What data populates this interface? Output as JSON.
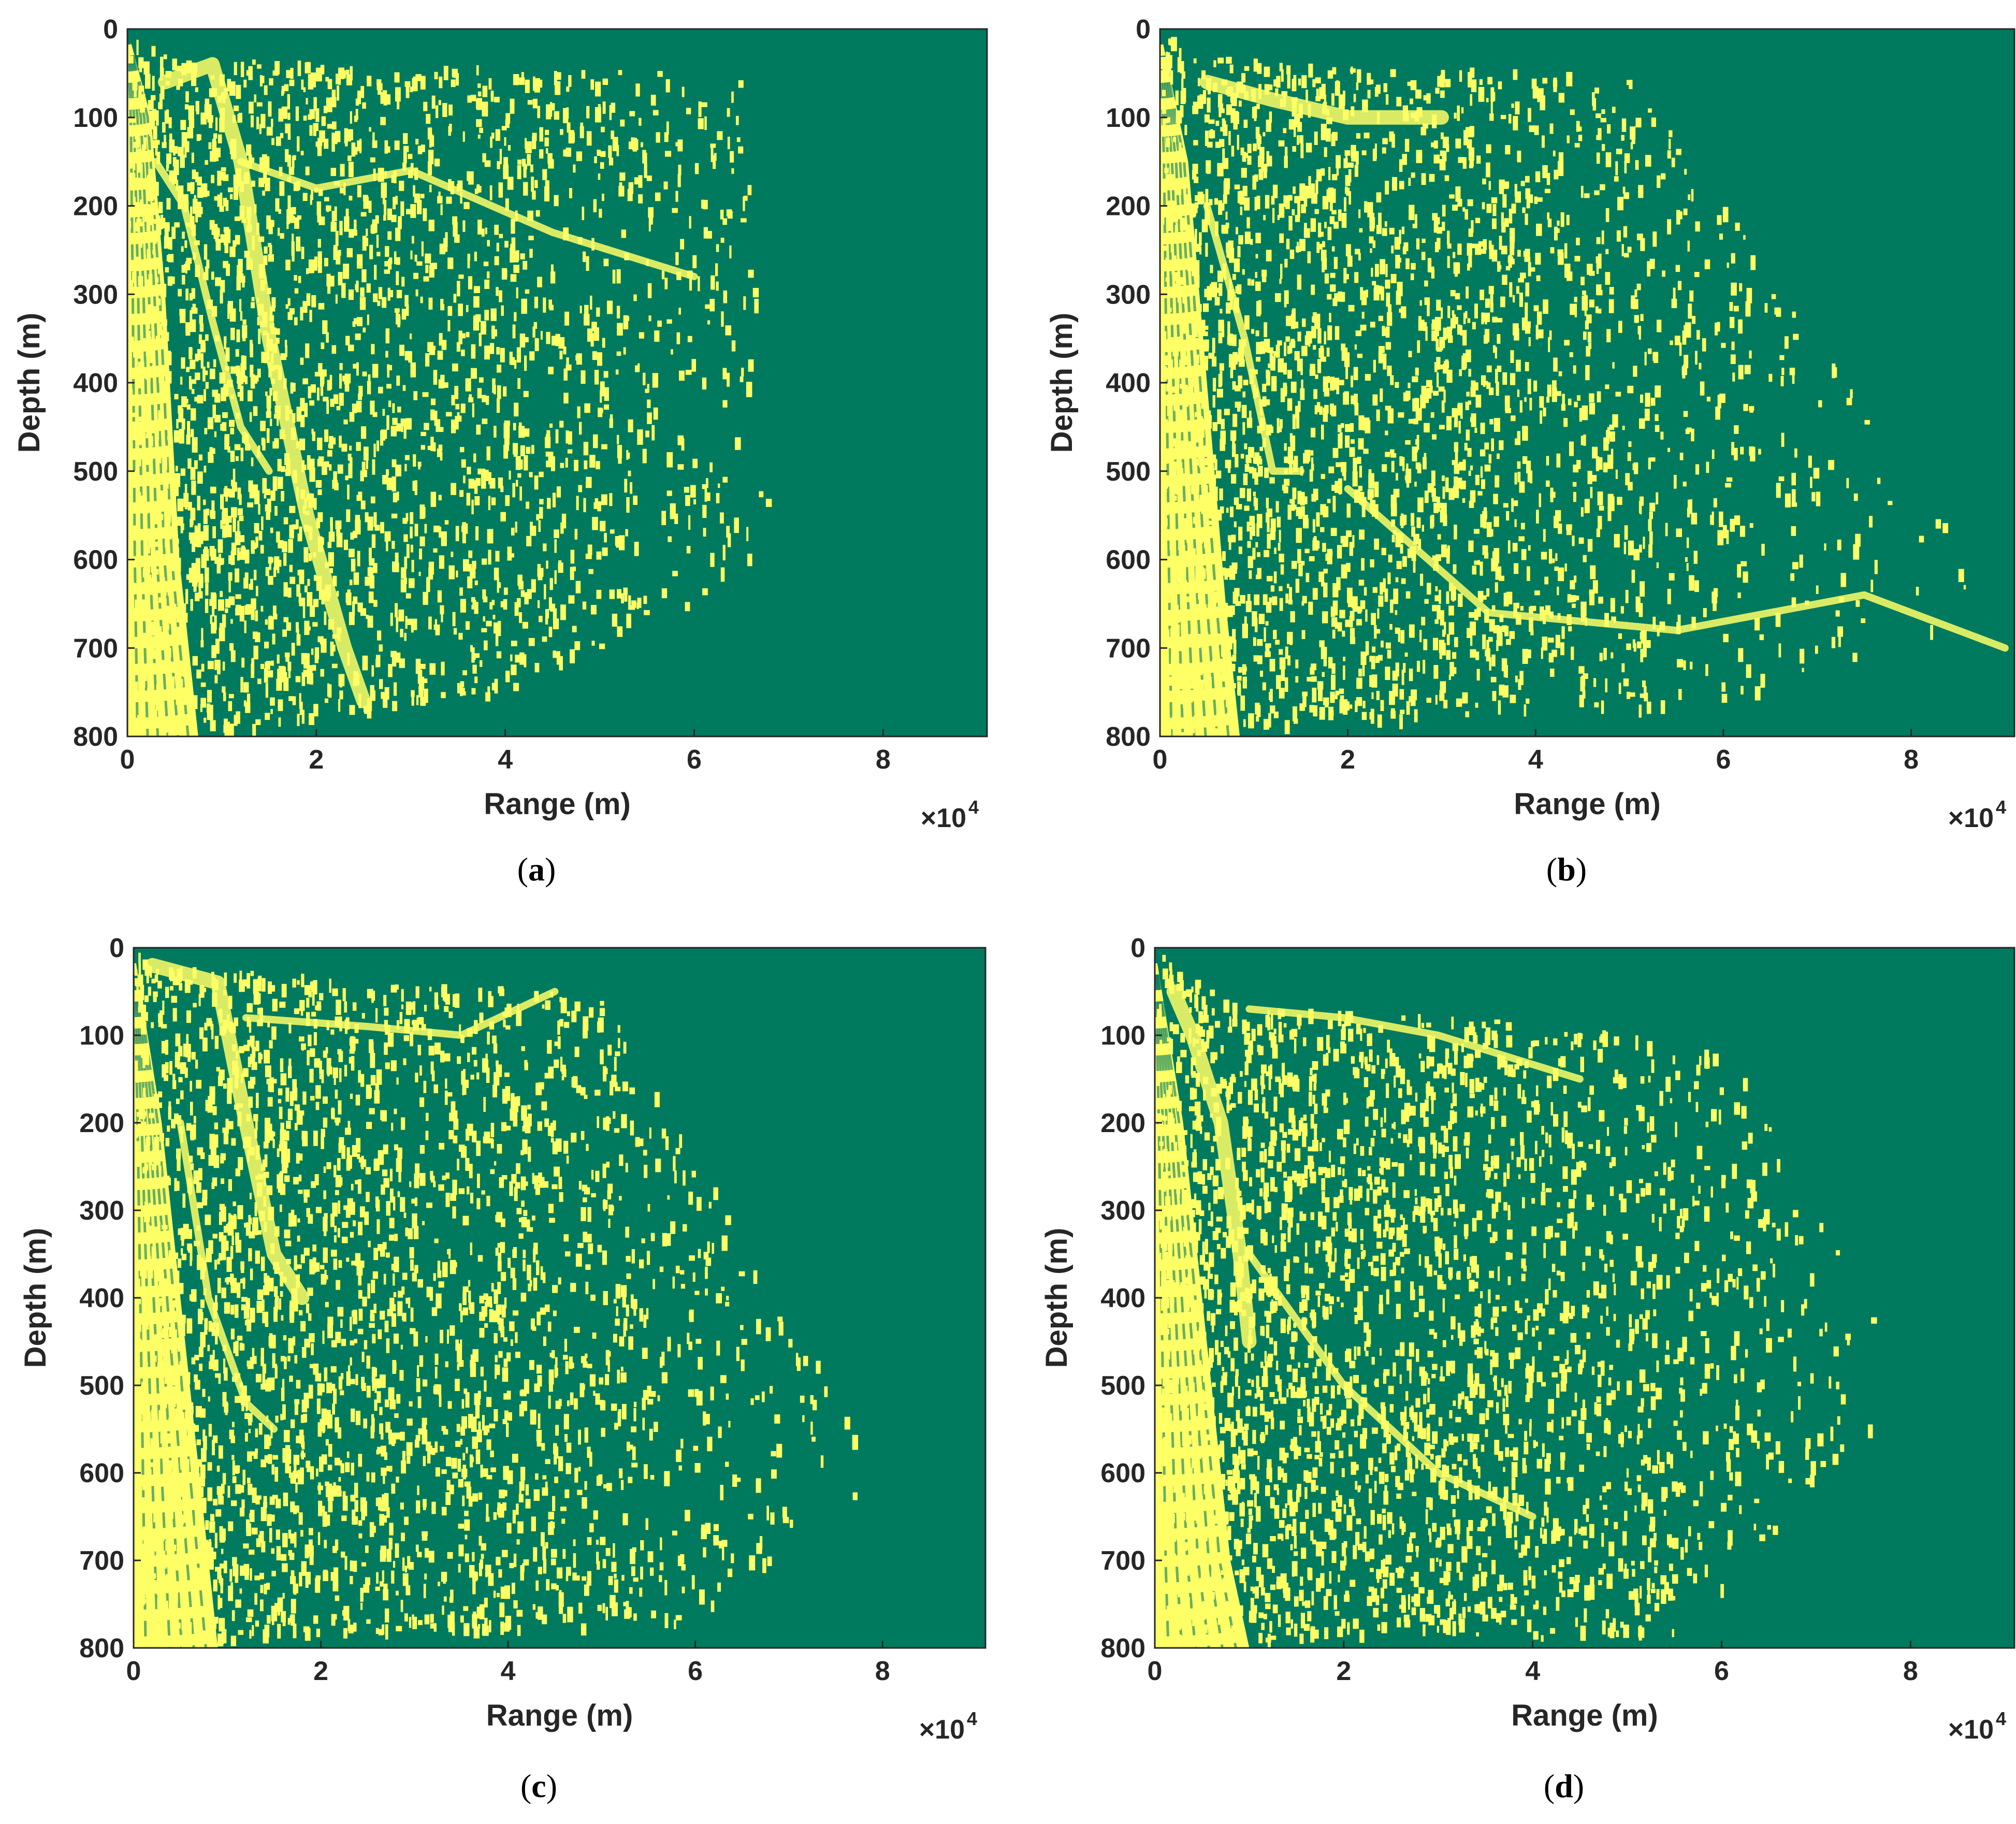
{
  "colors": {
    "background": "#007A5E",
    "feature": "#FFFF66",
    "axis": "#262626"
  },
  "chart_data": [
    {
      "type": "heatmap",
      "panel": "a",
      "caption_letter": "a",
      "xlabel": "Range (m)",
      "ylabel": "Depth (m)",
      "x_multiplier": "×10",
      "x_multiplier_exp": "4",
      "xlim": [
        0,
        91000
      ],
      "ylim": [
        800,
        0
      ],
      "xticks": [
        0,
        20000,
        40000,
        60000,
        80000
      ],
      "xtick_labels": [
        "0",
        "2",
        "4",
        "6",
        "8"
      ],
      "yticks": [
        0,
        100,
        200,
        300,
        400,
        500,
        600,
        700,
        800
      ],
      "ytick_labels": [
        "0",
        "100",
        "200",
        "300",
        "400",
        "500",
        "600",
        "700",
        "800"
      ],
      "colormap": [
        "#007A5E",
        "#FFFF66"
      ],
      "features": {
        "source_band": [
          [
            0,
            0
          ],
          [
            2500,
            100
          ],
          [
            4000,
            300
          ],
          [
            5500,
            600
          ],
          [
            7500,
            800
          ]
        ],
        "ridges": [
          {
            "points": [
              [
                4000,
                60
              ],
              [
                9000,
                40
              ],
              [
                12000,
                150
              ],
              [
                15000,
                350
              ],
              [
                19000,
                550
              ],
              [
                23000,
                700
              ],
              [
                25000,
                760
              ]
            ]
          },
          {
            "points": [
              [
                3000,
                150
              ],
              [
                6000,
                200
              ],
              [
                9000,
                330
              ],
              [
                12000,
                450
              ],
              [
                15000,
                500
              ]
            ]
          },
          {
            "points": [
              [
                12000,
                150
              ],
              [
                20000,
                180
              ],
              [
                30000,
                160
              ],
              [
                45000,
                230
              ],
              [
                60000,
                280
              ]
            ]
          }
        ],
        "scatter_extent": [
          [
            4000,
            30
          ],
          [
            65000,
            50
          ],
          [
            68000,
            600
          ],
          [
            40000,
            750
          ],
          [
            20000,
            780
          ]
        ]
      }
    },
    {
      "type": "heatmap",
      "panel": "b",
      "caption_letter": "b",
      "xlabel": "Range (m)",
      "ylabel": "Depth (m)",
      "x_multiplier": "×10",
      "x_multiplier_exp": "4",
      "xlim": [
        0,
        91000
      ],
      "ylim": [
        800,
        0
      ],
      "xticks": [
        0,
        20000,
        40000,
        60000,
        80000
      ],
      "xtick_labels": [
        "0",
        "2",
        "4",
        "6",
        "8"
      ],
      "yticks": [
        0,
        100,
        200,
        300,
        400,
        500,
        600,
        700,
        800
      ],
      "ytick_labels": [
        "0",
        "100",
        "200",
        "300",
        "400",
        "500",
        "600",
        "700",
        "800"
      ],
      "colormap": [
        "#007A5E",
        "#FFFF66"
      ],
      "features": {
        "source_band": [
          [
            0,
            0
          ],
          [
            3000,
            150
          ],
          [
            5000,
            400
          ],
          [
            7000,
            650
          ],
          [
            8500,
            800
          ]
        ],
        "ridges": [
          {
            "points": [
              [
                5000,
                60
              ],
              [
                12000,
                80
              ],
              [
                20000,
                100
              ],
              [
                30000,
                100
              ]
            ]
          },
          {
            "points": [
              [
                5000,
                200
              ],
              [
                9000,
                350
              ],
              [
                12000,
                500
              ],
              [
                15000,
                500
              ]
            ]
          },
          {
            "points": [
              [
                20000,
                520
              ],
              [
                35000,
                660
              ],
              [
                55000,
                680
              ],
              [
                75000,
                640
              ],
              [
                90000,
                700
              ]
            ]
          }
        ],
        "scatter_extent": [
          [
            4000,
            30
          ],
          [
            50000,
            50
          ],
          [
            90000,
            650
          ],
          [
            60000,
            760
          ],
          [
            15000,
            780
          ]
        ]
      }
    },
    {
      "type": "heatmap",
      "panel": "c",
      "caption_letter": "c",
      "xlabel": "Range (m)",
      "ylabel": "Depth (m)",
      "x_multiplier": "×10",
      "x_multiplier_exp": "4",
      "xlim": [
        0,
        91000
      ],
      "ylim": [
        800,
        0
      ],
      "xticks": [
        0,
        20000,
        40000,
        60000,
        80000
      ],
      "xtick_labels": [
        "0",
        "2",
        "4",
        "6",
        "8"
      ],
      "yticks": [
        0,
        100,
        200,
        300,
        400,
        500,
        600,
        700,
        800
      ],
      "ytick_labels": [
        "0",
        "100",
        "200",
        "300",
        "400",
        "500",
        "600",
        "700",
        "800"
      ],
      "colormap": [
        "#007A5E",
        "#FFFF66"
      ],
      "features": {
        "source_band": [
          [
            0,
            0
          ],
          [
            3000,
            200
          ],
          [
            5500,
            450
          ],
          [
            7500,
            650
          ],
          [
            9000,
            800
          ]
        ],
        "ridges": [
          {
            "points": [
              [
                2000,
                20
              ],
              [
                9000,
                40
              ],
              [
                12000,
                200
              ],
              [
                15000,
                350
              ],
              [
                18000,
                400
              ]
            ]
          },
          {
            "points": [
              [
                5000,
                200
              ],
              [
                8000,
                400
              ],
              [
                12000,
                520
              ],
              [
                15000,
                550
              ]
            ]
          },
          {
            "points": [
              [
                12000,
                80
              ],
              [
                25000,
                90
              ],
              [
                35000,
                100
              ],
              [
                45000,
                50
              ]
            ]
          }
        ],
        "scatter_extent": [
          [
            3000,
            20
          ],
          [
            50000,
            50
          ],
          [
            80000,
            600
          ],
          [
            60000,
            770
          ],
          [
            20000,
            780
          ]
        ]
      }
    },
    {
      "type": "heatmap",
      "panel": "d",
      "caption_letter": "d",
      "xlabel": "Range (m)",
      "ylabel": "Depth (m)",
      "x_multiplier": "×10",
      "x_multiplier_exp": "4",
      "xlim": [
        0,
        91000
      ],
      "ylim": [
        800,
        0
      ],
      "xticks": [
        0,
        20000,
        40000,
        60000,
        80000
      ],
      "xtick_labels": [
        "0",
        "2",
        "4",
        "6",
        "8"
      ],
      "yticks": [
        0,
        100,
        200,
        300,
        400,
        500,
        600,
        700,
        800
      ],
      "ytick_labels": [
        "0",
        "100",
        "200",
        "300",
        "400",
        "500",
        "600",
        "700",
        "800"
      ],
      "colormap": [
        "#007A5E",
        "#FFFF66"
      ],
      "features": {
        "source_band": [
          [
            0,
            0
          ],
          [
            3000,
            200
          ],
          [
            6000,
            500
          ],
          [
            8000,
            700
          ],
          [
            10000,
            800
          ]
        ],
        "ridges": [
          {
            "points": [
              [
                2000,
                50
              ],
              [
                4000,
                100
              ],
              [
                7000,
                200
              ],
              [
                9000,
                350
              ],
              [
                10000,
                450
              ]
            ]
          },
          {
            "points": [
              [
                10000,
                70
              ],
              [
                20000,
                80
              ],
              [
                30000,
                100
              ],
              [
                45000,
                150
              ]
            ]
          },
          {
            "points": [
              [
                10000,
                350
              ],
              [
                20000,
                500
              ],
              [
                30000,
                600
              ],
              [
                40000,
                650
              ]
            ]
          }
        ],
        "scatter_extent": [
          [
            8000,
            60
          ],
          [
            60000,
            100
          ],
          [
            80000,
            500
          ],
          [
            55000,
            790
          ],
          [
            20000,
            780
          ]
        ]
      }
    }
  ]
}
